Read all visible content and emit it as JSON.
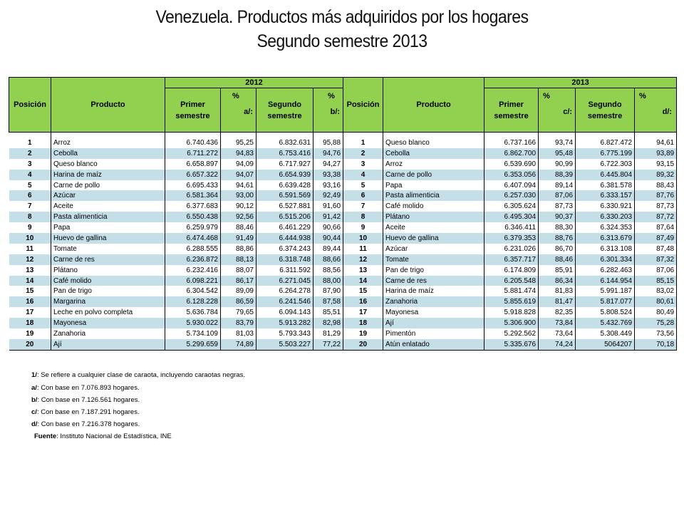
{
  "title": "Venezuela. Productos más adquiridos por los hogares",
  "subtitle": "Segundo semestre 2013",
  "header": {
    "year1": "2012",
    "year2": "2013",
    "posicion": "Posición",
    "producto": "Producto",
    "primer": "Primer",
    "segundo": "Segundo",
    "semestre": "semestre",
    "pct": "%",
    "a": "a/:",
    "b": "b/:",
    "c": "c/:",
    "d": "d/:"
  },
  "rows": [
    {
      "p1": "1",
      "prod1": "Arroz",
      "v1": "6.740.436",
      "pa": "95,25",
      "v2": "6.832.631",
      "pb": "95,88",
      "p2": "1",
      "prod2": "Queso blanco",
      "v3": "6.737.166",
      "pc": "93,74",
      "v4": "6.827.472",
      "pd": "94,61"
    },
    {
      "p1": "2",
      "prod1": "Cebolla",
      "v1": "6.711.272",
      "pa": "94,83",
      "v2": "6.753.416",
      "pb": "94,76",
      "p2": "2",
      "prod2": "Cebolla",
      "v3": "6.862.700",
      "pc": "95,48",
      "v4": "6.775.199",
      "pd": "93,89"
    },
    {
      "p1": "3",
      "prod1": "Queso blanco",
      "v1": "6.658.897",
      "pa": "94,09",
      "v2": "6.717.927",
      "pb": "94,27",
      "p2": "3",
      "prod2": "Arroz",
      "v3": "6.539.690",
      "pc": "90,99",
      "v4": "6.722.303",
      "pd": "93,15"
    },
    {
      "p1": "4",
      "prod1": "Harina de maíz",
      "v1": "6.657.322",
      "pa": "94,07",
      "v2": "6.654.939",
      "pb": "93,38",
      "p2": "4",
      "prod2": "Carne de pollo",
      "v3": "6.353.056",
      "pc": "88,39",
      "v4": "6.445.804",
      "pd": "89,32"
    },
    {
      "p1": "5",
      "prod1": "Carne de pollo",
      "v1": "6.695.433",
      "pa": "94,61",
      "v2": "6.639.428",
      "pb": "93,16",
      "p2": "5",
      "prod2": "Papa",
      "v3": "6.407.094",
      "pc": "89,14",
      "v4": "6.381.578",
      "pd": "88,43"
    },
    {
      "p1": "6",
      "prod1": "Azúcar",
      "v1": "6.581.364",
      "pa": "93,00",
      "v2": "6.591.569",
      "pb": "92,49",
      "p2": "6",
      "prod2": "Pasta alimenticia",
      "v3": "6.257.030",
      "pc": "87,06",
      "v4": "6.333.157",
      "pd": "87,76"
    },
    {
      "p1": "7",
      "prod1": "Aceite",
      "v1": "6.377.683",
      "pa": "90,12",
      "v2": "6.527.881",
      "pb": "91,60",
      "p2": "7",
      "prod2": "Café molido",
      "v3": "6.305.624",
      "pc": "87,73",
      "v4": "6.330.921",
      "pd": "87,73"
    },
    {
      "p1": "8",
      "prod1": "Pasta alimenticia",
      "v1": "6.550.438",
      "pa": "92,56",
      "v2": "6.515.206",
      "pb": "91,42",
      "p2": "8",
      "prod2": "Plátano",
      "v3": "6.495.304",
      "pc": "90,37",
      "v4": "6.330.203",
      "pd": "87,72"
    },
    {
      "p1": "9",
      "prod1": "Papa",
      "v1": "6.259.979",
      "pa": "88,46",
      "v2": "6.461.229",
      "pb": "90,66",
      "p2": "9",
      "prod2": "Aceite",
      "v3": "6.346.411",
      "pc": "88,30",
      "v4": "6.324.353",
      "pd": "87,64"
    },
    {
      "p1": "10",
      "prod1": "Huevo de gallina",
      "v1": "6.474.468",
      "pa": "91,49",
      "v2": "6.444.938",
      "pb": "90,44",
      "p2": "10",
      "prod2": "Huevo de gallina",
      "v3": "6.379.353",
      "pc": "88,76",
      "v4": "6.313.679",
      "pd": "87,49"
    },
    {
      "p1": "11",
      "prod1": "Tomate",
      "v1": "6.288.555",
      "pa": "88,86",
      "v2": "6.374.243",
      "pb": "89,44",
      "p2": "11",
      "prod2": "Azúcar",
      "v3": "6.231.026",
      "pc": "86,70",
      "v4": "6.313.108",
      "pd": "87,48"
    },
    {
      "p1": "12",
      "prod1": "Carne de res",
      "v1": "6.236.872",
      "pa": "88,13",
      "v2": "6.318.748",
      "pb": "88,66",
      "p2": "12",
      "prod2": "Tomate",
      "v3": "6.357.717",
      "pc": "88,46",
      "v4": "6.301.334",
      "pd": "87,32"
    },
    {
      "p1": "13",
      "prod1": "Plátano",
      "v1": "6.232.416",
      "pa": "88,07",
      "v2": "6.311.592",
      "pb": "88,56",
      "p2": "13",
      "prod2": "Pan de trigo",
      "v3": "6.174.809",
      "pc": "85,91",
      "v4": "6.282.463",
      "pd": "87,06"
    },
    {
      "p1": "14",
      "prod1": "Café molido",
      "v1": "6.098.221",
      "pa": "86,17",
      "v2": "6.271.045",
      "pb": "88,00",
      "p2": "14",
      "prod2": "Carne de res",
      "v3": "6.205.548",
      "pc": "86,34",
      "v4": "6.144.954",
      "pd": "85,15"
    },
    {
      "p1": "15",
      "prod1": "Pan de trigo",
      "v1": "6.304.542",
      "pa": "89,09",
      "v2": "6.264.278",
      "pb": "87,90",
      "p2": "15",
      "prod2": "Harina de maíz",
      "v3": "5.881.474",
      "pc": "81,83",
      "v4": "5.991.187",
      "pd": "83,02"
    },
    {
      "p1": "16",
      "prod1": "Margarina",
      "v1": "6.128.228",
      "pa": "86,59",
      "v2": "6.241.546",
      "pb": "87,58",
      "p2": "16",
      "prod2": "Zanahoria",
      "v3": "5.855.619",
      "pc": "81,47",
      "v4": "5.817.077",
      "pd": "80,61"
    },
    {
      "p1": "17",
      "prod1": "Leche en polvo completa",
      "v1": "5.636.784",
      "pa": "79,65",
      "v2": "6.094.143",
      "pb": "85,51",
      "p2": "17",
      "prod2": "Mayonesa",
      "v3": "5.918.828",
      "pc": "82,35",
      "v4": "5.808.524",
      "pd": "80,49"
    },
    {
      "p1": "18",
      "prod1": "Mayonesa",
      "v1": "5.930.022",
      "pa": "83,79",
      "v2": "5.913.282",
      "pb": "82,98",
      "p2": "18",
      "prod2": "Ají",
      "v3": "5.306.900",
      "pc": "73,84",
      "v4": "5.432.769",
      "pd": "75,28"
    },
    {
      "p1": "19",
      "prod1": "Zanahoria",
      "v1": "5.734.109",
      "pa": "81,03",
      "v2": "5.793.343",
      "pb": "81,29",
      "p2": "19",
      "prod2": "Pimentón",
      "v3": "5.292.562",
      "pc": "73,64",
      "v4": "5.308.449",
      "pd": "73,56"
    },
    {
      "p1": "20",
      "prod1": "Ají",
      "v1": "5.299.659",
      "pa": "74,89",
      "v2": "5.503.227",
      "pb": "77,22",
      "p2": "20",
      "prod2": "Atún enlatado",
      "v3": "5.335.676",
      "pc": "74,24",
      "v4": "5064207",
      "pd": "70,18"
    }
  ],
  "footnotes": {
    "n1_label": "1/",
    "n1_text": ": Se refiere a cualquier clase de caraota, incluyendo caraotas negras.",
    "a_label": "a/",
    "a_text": ": Con base en 7.076.893  hogares.",
    "b_label": "b/",
    "b_text": ": Con base en 7.126.561  hogares.",
    "c_label": "c/",
    "c_text": ": Con base en 7.187.291  hogares.",
    "d_label": "d/",
    "d_text": ": Con base en 7.216.378  hogares.",
    "source_label": "Fuente",
    "source_text": ": Instituto Nacional de Estadística, INE"
  }
}
